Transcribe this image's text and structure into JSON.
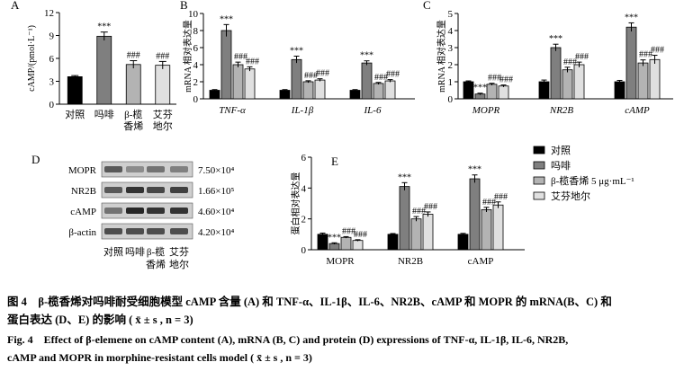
{
  "colors": {
    "control": "#000000",
    "morphine": "#7f7f7f",
    "elemene": "#b3b3b3",
    "fentanyl": "#e0e0e0"
  },
  "chart_data": [
    {
      "id": "A",
      "panel_label": "A",
      "type": "bar",
      "categories": [
        [
          "对照"
        ],
        [
          "吗啡"
        ],
        [
          "β-榄",
          "香烯"
        ],
        [
          "艾芬",
          "地尔"
        ]
      ],
      "values": [
        3.6,
        8.9,
        5.2,
        5.1
      ],
      "errors": [
        0.15,
        0.55,
        0.5,
        0.5
      ],
      "annotations": [
        "",
        "***",
        "###",
        "###"
      ],
      "ylabel": "cAMP/(pmol·L⁻¹)",
      "ylim": [
        0,
        12
      ],
      "yticks": [
        0,
        3,
        6,
        9,
        12
      ]
    },
    {
      "id": "B",
      "panel_label": "B",
      "type": "bar",
      "categories": [
        "TNF-α",
        "IL-1β",
        "IL-6"
      ],
      "series": [
        {
          "name": "对照",
          "values": [
            1,
            1,
            1
          ],
          "errors": [
            0.08,
            0.08,
            0.08
          ],
          "annotations": [
            "",
            "",
            ""
          ]
        },
        {
          "name": "吗啡",
          "values": [
            8,
            4.6,
            4.2
          ],
          "errors": [
            0.7,
            0.4,
            0.25
          ],
          "annotations": [
            "***",
            "***",
            "***"
          ]
        },
        {
          "name": "β-榄香烯 5 μg·mL⁻¹",
          "values": [
            4,
            2,
            1.8
          ],
          "errors": [
            0.3,
            0.12,
            0.12
          ],
          "annotations": [
            "###",
            "###",
            "###"
          ]
        },
        {
          "name": "艾芬地尔",
          "values": [
            3.5,
            2.2,
            2.1
          ],
          "errors": [
            0.25,
            0.15,
            0.15
          ],
          "annotations": [
            "###",
            "###",
            "###"
          ]
        }
      ],
      "ylabel": "mRNA 相对表达量",
      "ylim": [
        0,
        10
      ],
      "yticks": [
        0,
        2,
        4,
        6,
        8,
        10
      ]
    },
    {
      "id": "C",
      "panel_label": "C",
      "type": "bar",
      "categories": [
        "MOPR",
        "NR2B",
        "cAMP"
      ],
      "series": [
        {
          "name": "对照",
          "values": [
            1,
            1,
            1
          ],
          "errors": [
            0.05,
            0.1,
            0.08
          ],
          "annotations": [
            "",
            "",
            ""
          ]
        },
        {
          "name": "吗啡",
          "values": [
            0.28,
            3,
            4.2
          ],
          "errors": [
            0.05,
            0.2,
            0.25
          ],
          "annotations": [
            "***",
            "***",
            "***"
          ]
        },
        {
          "name": "β-榄香烯 5 μg·mL⁻¹",
          "values": [
            0.85,
            1.7,
            2.1
          ],
          "errors": [
            0.06,
            0.15,
            0.18
          ],
          "annotations": [
            "###",
            "###",
            "###"
          ]
        },
        {
          "name": "艾芬地尔",
          "values": [
            0.75,
            2,
            2.3
          ],
          "errors": [
            0.06,
            0.15,
            0.25
          ],
          "annotations": [
            "###",
            "###",
            "###"
          ]
        }
      ],
      "ylabel": "mRNA 相对表达量",
      "ylim": [
        0,
        5
      ],
      "yticks": [
        0,
        1,
        2,
        3,
        4,
        5
      ]
    },
    {
      "id": "E",
      "panel_label": "E",
      "type": "bar",
      "categories": [
        "MOPR",
        "NR2B",
        "cAMP"
      ],
      "series": [
        {
          "name": "对照",
          "values": [
            1,
            1,
            1
          ],
          "errors": [
            0.08,
            0.05,
            0.06
          ],
          "annotations": [
            "",
            "",
            ""
          ]
        },
        {
          "name": "吗啡",
          "values": [
            0.4,
            4.1,
            4.6
          ],
          "errors": [
            0.05,
            0.25,
            0.25
          ],
          "annotations": [
            "***",
            "***",
            "***"
          ]
        },
        {
          "name": "β-榄香烯 5 μg·mL⁻¹",
          "values": [
            0.8,
            2,
            2.6
          ],
          "errors": [
            0.05,
            0.15,
            0.15
          ],
          "annotations": [
            "###",
            "###",
            "###"
          ]
        },
        {
          "name": "艾芬地尔",
          "values": [
            0.6,
            2.3,
            2.9
          ],
          "errors": [
            0.05,
            0.15,
            0.2
          ],
          "annotations": [
            "###",
            "###",
            "###"
          ]
        }
      ],
      "ylabel": "蛋白相对表达量",
      "ylim": [
        0,
        6
      ],
      "yticks": [
        0,
        2,
        4,
        6
      ],
      "legend": {
        "position": "top-right",
        "entries": [
          "对照",
          "吗啡",
          "β-榄香烯 5 μg·mL⁻¹",
          "艾芬地尔"
        ]
      }
    }
  ],
  "western_blot": {
    "panel_label": "D",
    "proteins": [
      {
        "name": "MOPR",
        "mw": "7.50×10⁴"
      },
      {
        "name": "NR2B",
        "mw": "1.66×10⁵"
      },
      {
        "name": "cAMP",
        "mw": "4.60×10⁴"
      },
      {
        "name": "β-actin",
        "mw": "4.20×10⁴"
      }
    ],
    "lanes": [
      [
        "对照"
      ],
      [
        "吗啡"
      ],
      [
        "β-榄",
        "香烯"
      ],
      [
        "艾芬",
        "地尔"
      ]
    ]
  },
  "caption": {
    "cn_line1": "图 4　β-榄香烯对吗啡耐受细胞模型 cAMP 含量 (A) 和 TNF-α、IL-1β、IL-6、NR2B、cAMP 和 MOPR 的 mRNA(B、C) 和",
    "cn_line2": "蛋白表达 (D、E) 的影响 ( x̄ ± s , n = 3)",
    "en_line1": "Fig. 4　Effect of β-elemene on cAMP content (A), mRNA (B, C) and protein (D) expressions of TNF-α, IL-1β, IL-6, NR2B,",
    "en_line2": "cAMP and MOPR in morphine-resistant cells model ( x̄ ± s , n = 3)"
  }
}
